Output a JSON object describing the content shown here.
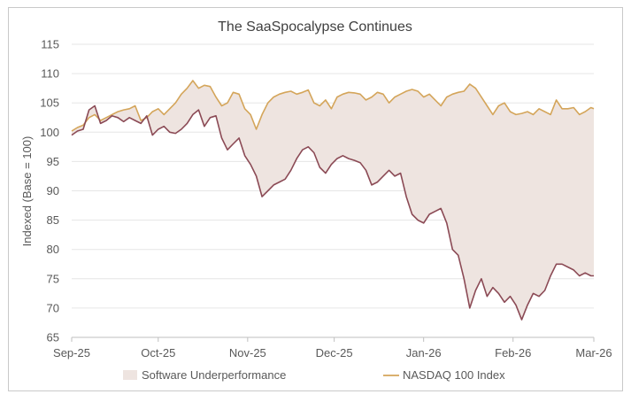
{
  "chart_data": {
    "type": "line",
    "title": "The SaaSpocalypse Continues",
    "xlabel": "",
    "ylabel": "Indexed (Base = 100)",
    "ylim": [
      65,
      115
    ],
    "yticks": [
      65,
      70,
      75,
      80,
      85,
      90,
      95,
      100,
      105,
      110,
      115
    ],
    "xlim": [
      0,
      181
    ],
    "xticks": [
      {
        "label": "Sep-25",
        "x": 0
      },
      {
        "label": "Oct-25",
        "x": 30
      },
      {
        "label": "Nov-25",
        "x": 61
      },
      {
        "label": "Dec-25",
        "x": 91
      },
      {
        "label": "Jan-26",
        "x": 122
      },
      {
        "label": "Feb-26",
        "x": 153
      },
      {
        "label": "Mar-26",
        "x": 181
      }
    ],
    "grid": "horizontal",
    "legend": "bottom",
    "series": [
      {
        "name": "NASDAQ 100 Index",
        "color": "#d4a55a",
        "x": [
          0,
          2,
          4,
          6,
          8,
          10,
          12,
          14,
          16,
          18,
          20,
          22,
          24,
          26,
          28,
          30,
          32,
          34,
          36,
          38,
          40,
          42,
          44,
          46,
          48,
          50,
          52,
          54,
          56,
          58,
          60,
          62,
          64,
          66,
          68,
          70,
          72,
          74,
          76,
          78,
          80,
          82,
          84,
          86,
          88,
          90,
          92,
          94,
          96,
          98,
          100,
          102,
          104,
          106,
          108,
          110,
          112,
          114,
          116,
          118,
          120,
          122,
          124,
          126,
          128,
          130,
          132,
          134,
          136,
          138,
          140,
          142,
          144,
          146,
          148,
          150,
          152,
          154,
          156,
          158,
          160,
          162,
          164,
          166,
          168,
          170,
          172,
          174,
          176,
          178,
          180,
          181
        ],
        "values": [
          100.2,
          100.8,
          101.2,
          102.5,
          103.0,
          102.0,
          102.5,
          103.0,
          103.5,
          103.8,
          104.0,
          104.5,
          102.0,
          102.5,
          103.5,
          104.0,
          103.0,
          104.0,
          105.0,
          106.5,
          107.5,
          108.8,
          107.5,
          108.0,
          107.8,
          106.0,
          104.5,
          105.0,
          106.8,
          106.5,
          104.0,
          103.0,
          100.5,
          103.0,
          105.0,
          106.0,
          106.5,
          106.8,
          107.0,
          106.5,
          106.8,
          107.2,
          105.0,
          104.5,
          105.5,
          104.0,
          106.0,
          106.5,
          106.8,
          106.7,
          106.5,
          105.5,
          106.0,
          106.8,
          106.5,
          105.0,
          106.0,
          106.5,
          107.0,
          107.3,
          107.0,
          106.0,
          106.5,
          105.5,
          104.5,
          106.0,
          106.5,
          106.8,
          107.0,
          108.2,
          107.5,
          106.0,
          104.5,
          103.0,
          104.5,
          105.0,
          103.5,
          103.0,
          103.2,
          103.5,
          103.0,
          104.0,
          103.5,
          103.0,
          105.5,
          104.0,
          104.0,
          104.2,
          103.0,
          103.5,
          104.2,
          104.0
        ]
      },
      {
        "name": "Software",
        "color": "#8b4a55",
        "x": [
          0,
          2,
          4,
          6,
          8,
          10,
          12,
          14,
          16,
          18,
          20,
          22,
          24,
          26,
          28,
          30,
          32,
          34,
          36,
          38,
          40,
          42,
          44,
          46,
          48,
          50,
          52,
          54,
          56,
          58,
          60,
          62,
          64,
          66,
          68,
          70,
          72,
          74,
          76,
          78,
          80,
          82,
          84,
          86,
          88,
          90,
          92,
          94,
          96,
          98,
          100,
          102,
          104,
          106,
          108,
          110,
          112,
          114,
          116,
          118,
          120,
          122,
          124,
          126,
          128,
          130,
          132,
          134,
          136,
          138,
          140,
          142,
          144,
          146,
          148,
          150,
          152,
          154,
          156,
          158,
          160,
          162,
          164,
          166,
          168,
          170,
          172,
          174,
          176,
          178,
          180,
          181
        ],
        "values": [
          99.5,
          100.2,
          100.5,
          103.8,
          104.5,
          101.5,
          102.0,
          102.8,
          102.5,
          101.8,
          102.5,
          102.0,
          101.5,
          102.8,
          99.5,
          100.5,
          101.0,
          100.0,
          99.8,
          100.5,
          101.5,
          103.0,
          103.8,
          101.0,
          102.5,
          102.8,
          99.0,
          97.0,
          98.0,
          99.0,
          96.0,
          94.5,
          92.5,
          89.0,
          90.0,
          91.0,
          91.5,
          92.0,
          93.5,
          95.5,
          97.0,
          97.5,
          96.5,
          94.0,
          93.0,
          94.5,
          95.5,
          96.0,
          95.5,
          95.2,
          94.8,
          93.5,
          91.0,
          91.5,
          92.5,
          93.5,
          92.5,
          93.0,
          89.0,
          86.0,
          85.0,
          84.5,
          86.0,
          86.5,
          87.0,
          84.5,
          80.0,
          79.0,
          75.0,
          70.0,
          73.0,
          75.0,
          72.0,
          73.5,
          72.5,
          71.0,
          72.0,
          70.5,
          68.0,
          70.5,
          72.5,
          72.0,
          73.0,
          75.5,
          77.5,
          77.5,
          77.0,
          76.5,
          75.5,
          76.0,
          75.5,
          75.5
        ]
      }
    ],
    "shaded_area": {
      "name": "Software Underperformance",
      "color": "#eee4e0",
      "between": [
        "NASDAQ 100 Index",
        "Software"
      ]
    },
    "legend_entries": [
      {
        "name": "Software Underperformance",
        "kind": "area"
      },
      {
        "name": "NASDAQ 100 Index",
        "kind": "line"
      }
    ]
  }
}
